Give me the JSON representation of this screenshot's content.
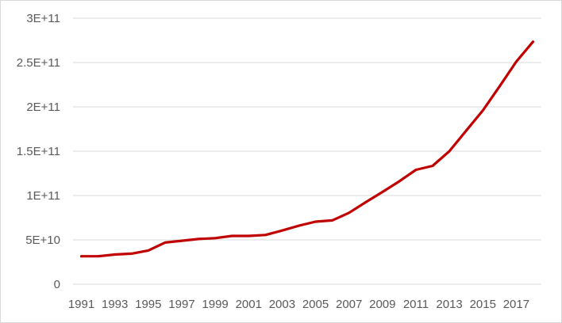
{
  "chart_data": {
    "type": "line",
    "title": "",
    "xlabel": "",
    "ylabel": "",
    "x": [
      1991,
      1992,
      1993,
      1994,
      1995,
      1996,
      1997,
      1998,
      1999,
      2000,
      2001,
      2002,
      2003,
      2004,
      2005,
      2006,
      2007,
      2008,
      2009,
      2010,
      2011,
      2012,
      2013,
      2014,
      2015,
      2016,
      2017,
      2018
    ],
    "x_tick_labels": [
      "1991",
      "1993",
      "1995",
      "1997",
      "1999",
      "2001",
      "2003",
      "2005",
      "2007",
      "2009",
      "2011",
      "2013",
      "2015",
      "2017"
    ],
    "ylim": [
      0,
      300000000000
    ],
    "y_ticks": [
      0,
      50000000000,
      100000000000,
      150000000000,
      200000000000,
      250000000000,
      300000000000
    ],
    "y_tick_labels": [
      "0",
      "5E+10",
      "1E+11",
      "1.5E+11",
      "2E+11",
      "2.5E+11",
      "3E+11"
    ],
    "series": [
      {
        "color": "#c00000",
        "values": [
          31500000000,
          31500000000,
          33500000000,
          34500000000,
          38000000000,
          47000000000,
          49000000000,
          51000000000,
          52000000000,
          54500000000,
          54500000000,
          55500000000,
          60500000000,
          66000000000,
          70500000000,
          72000000000,
          80500000000,
          92500000000,
          104000000000,
          116000000000,
          129000000000,
          133500000000,
          150000000000,
          173000000000,
          196000000000,
          223000000000,
          251000000000,
          273500000000
        ]
      }
    ],
    "grid": true,
    "legend": "none"
  }
}
